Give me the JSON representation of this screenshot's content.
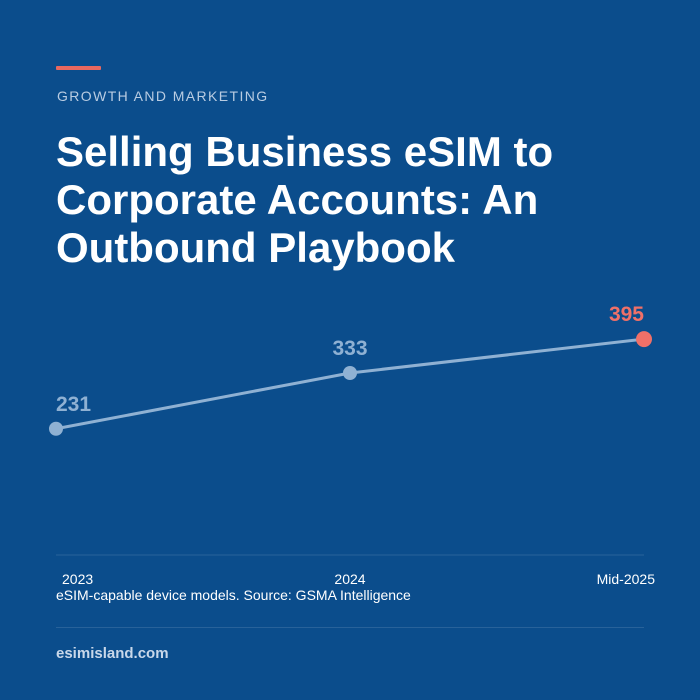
{
  "header": {
    "category": "GROWTH AND MARKETING",
    "title": "Selling Business eSIM to Corporate Accounts: An Outbound Playbook"
  },
  "colors": {
    "background": "#0b4d8c",
    "accent": "#e8685f",
    "line": "#8fb1d3",
    "highlight": "#f07068"
  },
  "chart_data": {
    "type": "line",
    "categories": [
      "2023",
      "2024",
      "Mid-2025"
    ],
    "values": [
      231,
      333,
      395
    ],
    "data_labels": [
      "231",
      "333",
      "395"
    ],
    "highlight_index": 2,
    "ylim": [
      0,
      430
    ],
    "grid": false,
    "legend": "none"
  },
  "caption": "eSIM-capable device models. Source: GSMA Intelligence",
  "footer": {
    "site": "esimisland.com"
  }
}
